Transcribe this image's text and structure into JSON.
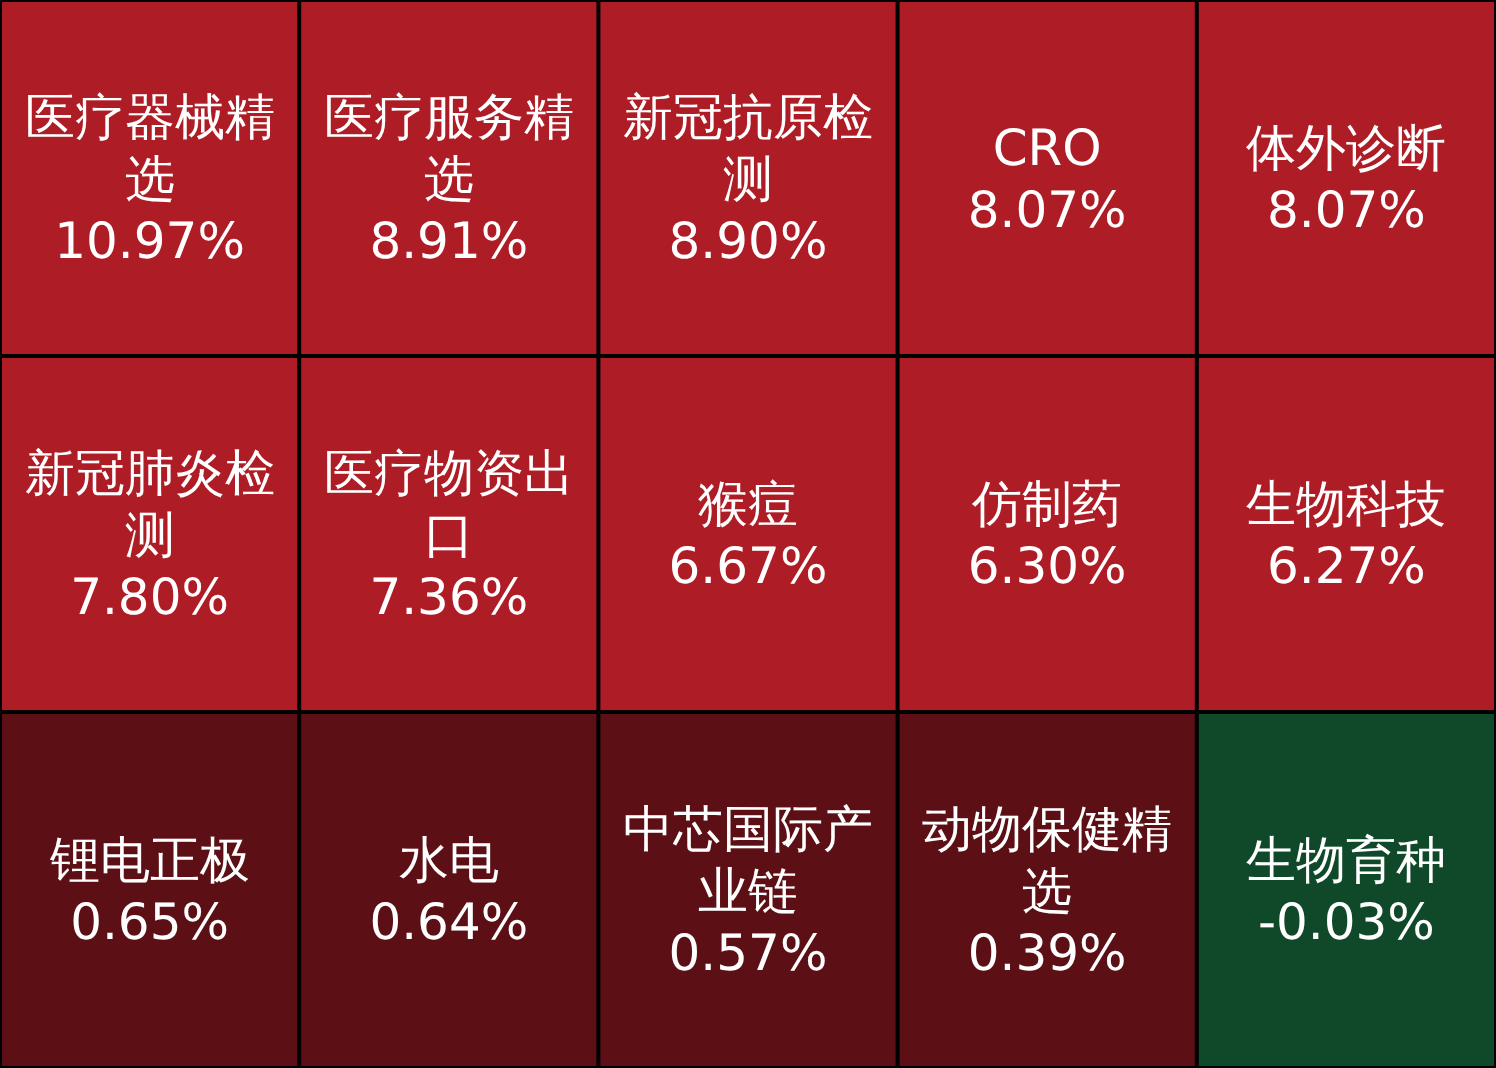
{
  "chart_data": {
    "type": "other",
    "categories": [
      "医疗器械精选",
      "医疗服务精选",
      "新冠抗原检测",
      "CRO",
      "体外诊断",
      "新冠肺炎检测",
      "医疗物资出口",
      "猴痘",
      "仿制药",
      "生物科技",
      "锂电正极",
      "水电",
      "中芯国际产业链",
      "动物保健精选",
      "生物育种"
    ],
    "values": [
      10.97,
      8.91,
      8.9,
      8.07,
      8.07,
      7.8,
      7.36,
      6.67,
      6.3,
      6.27,
      0.65,
      0.64,
      0.57,
      0.39,
      -0.03
    ],
    "value_labels": [
      "10.97%",
      "8.91%",
      "8.90%",
      "8.07%",
      "8.07%",
      "7.80%",
      "7.36%",
      "6.67%",
      "6.30%",
      "6.27%",
      "0.65%",
      "0.64%",
      "0.57%",
      "0.39%",
      "-0.03%"
    ],
    "colors": [
      "#ae1c25",
      "#ae1c25",
      "#ae1c25",
      "#ae1c25",
      "#ae1c25",
      "#ae1c25",
      "#ae1c25",
      "#ae1c25",
      "#ae1c25",
      "#ae1c25",
      "#5c1016",
      "#5c1016",
      "#5c1016",
      "#5c1016",
      "#10492a"
    ]
  }
}
